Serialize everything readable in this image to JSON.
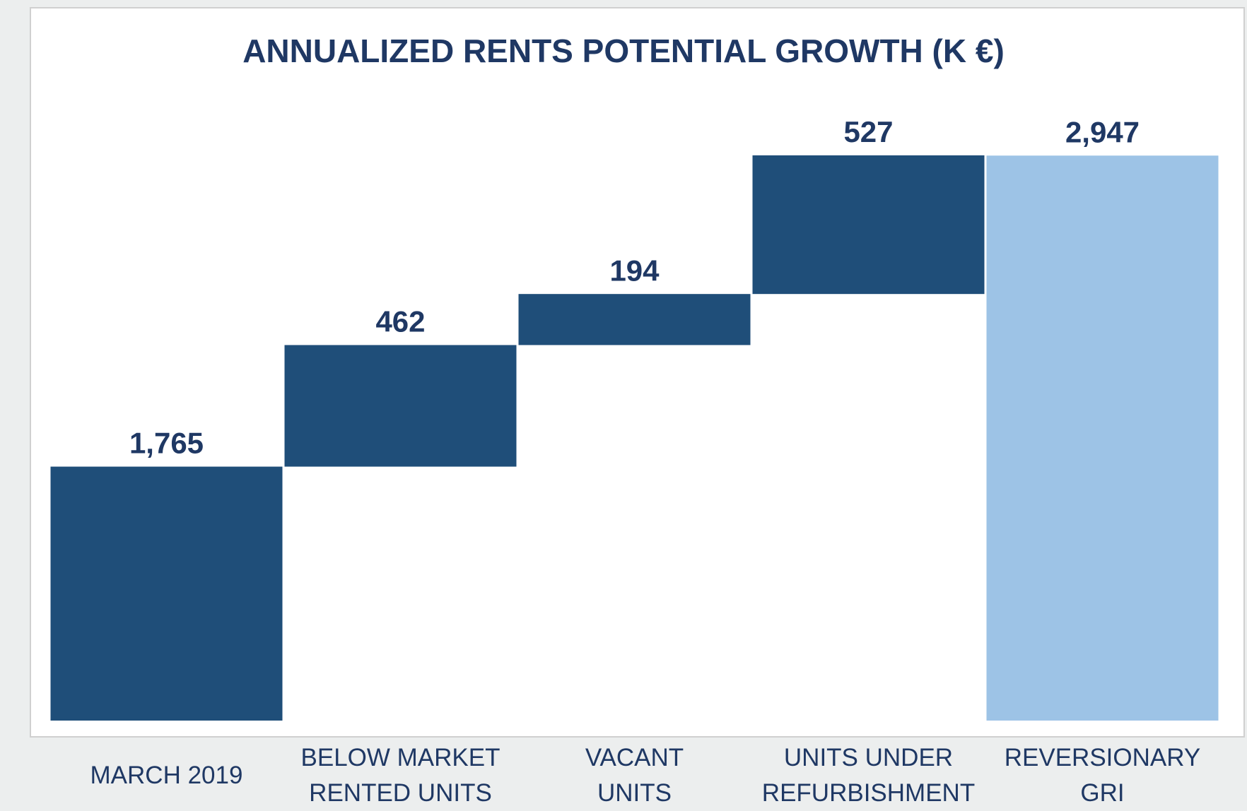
{
  "chart_data": {
    "type": "waterfall",
    "title": "ANNUALIZED RENTS POTENTIAL GROWTH (K €)",
    "categories": [
      "MARCH 2019",
      "BELOW MARKET\nRENTED UNITS",
      "VACANT\nUNITS",
      "UNITS UNDER\nREFURBISHMENT",
      "REVERSIONARY\nGRI"
    ],
    "values": [
      1765,
      462,
      194,
      527,
      2947
    ],
    "value_labels": [
      "1,765",
      "462",
      "194",
      "527",
      "2,947"
    ],
    "measure": [
      "absolute",
      "relative",
      "relative",
      "relative",
      "total"
    ],
    "colors": [
      "#1f4e79",
      "#1f4e79",
      "#1f4e79",
      "#1f4e79",
      "#9dc3e6"
    ],
    "ylim": [
      800,
      3200
    ]
  }
}
